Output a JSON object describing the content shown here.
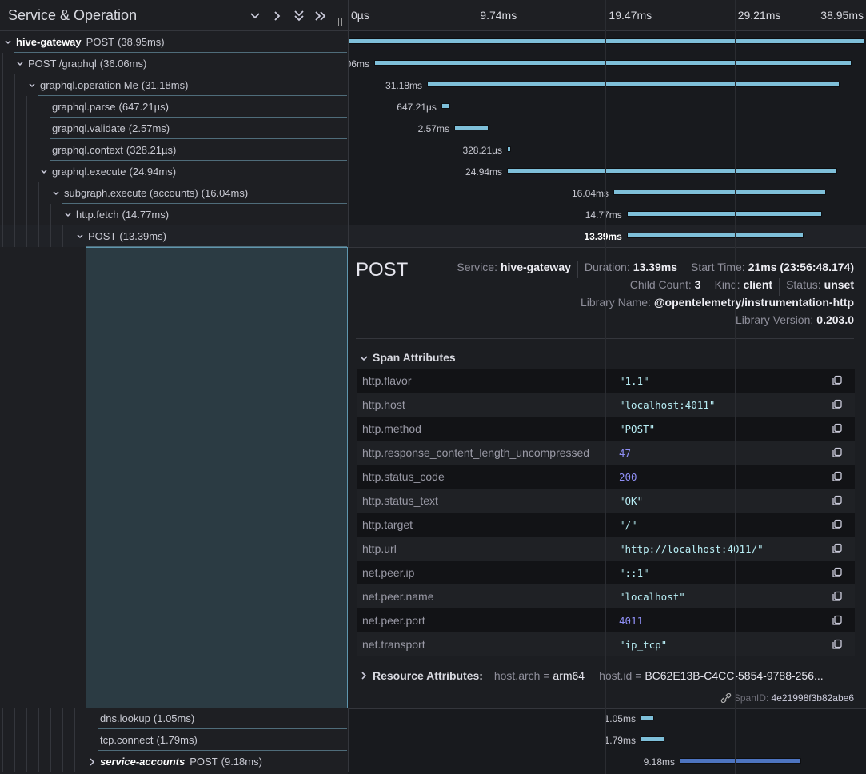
{
  "header": {
    "title": "Service & Operation"
  },
  "timeline": {
    "range": [
      0,
      38.95
    ],
    "ticks": [
      {
        "value": 0,
        "label": "0µs"
      },
      {
        "value": 9.74,
        "label": "9.74ms"
      },
      {
        "value": 19.47,
        "label": "19.47ms"
      },
      {
        "value": 29.21,
        "label": "29.21ms"
      },
      {
        "value": 38.95,
        "label": "38.95ms"
      }
    ]
  },
  "spans": [
    {
      "service": "hive-gateway",
      "name": "POST",
      "duration": 38.95,
      "duration_label": "38.95ms",
      "start": 0,
      "color": "#7ebfd9",
      "children": [
        {
          "name": "POST /graphql",
          "duration": 36.06,
          "duration_label": "36.06ms",
          "start": 1.93,
          "children": [
            {
              "name": "graphql.operation Me",
              "duration": 31.18,
              "duration_label": "31.18ms",
              "start": 5.92,
              "children": [
                {
                  "name": "graphql.parse",
                  "duration": 0.64721,
                  "duration_label": "647.21µs",
                  "start": 7.0
                },
                {
                  "name": "graphql.validate",
                  "duration": 2.57,
                  "duration_label": "2.57ms",
                  "start": 7.97
                },
                {
                  "name": "graphql.context",
                  "duration": 0.32821,
                  "duration_label": "328.21µs",
                  "start": 11.96
                },
                {
                  "name": "graphql.execute",
                  "duration": 24.94,
                  "duration_label": "24.94ms",
                  "start": 11.96,
                  "children": [
                    {
                      "name": "subgraph.execute (accounts)",
                      "duration": 16.04,
                      "duration_label": "16.04ms",
                      "start": 19.99,
                      "children": [
                        {
                          "name": "http.fetch",
                          "duration": 14.77,
                          "duration_label": "14.77ms",
                          "start": 21.0,
                          "children": [
                            {
                              "name": "POST",
                              "duration": 13.39,
                              "duration_label": "13.39ms",
                              "start": 21,
                              "selected": true,
                              "children": [
                                {
                                  "name": "dns.lookup",
                                  "duration": 1.05,
                                  "duration_label": "1.05ms",
                                  "start": 22.04
                                },
                                {
                                  "name": "tcp.connect",
                                  "duration": 1.79,
                                  "duration_label": "1.79ms",
                                  "start": 22.04
                                },
                                {
                                  "service": "service-accounts",
                                  "name": "POST",
                                  "duration": 9.18,
                                  "duration_label": "9.18ms",
                                  "start": 25.0,
                                  "color": "#4d74c0",
                                  "expanded": false
                                }
                              ]
                            }
                          ]
                        }
                      ]
                    }
                  ]
                }
              ]
            }
          ]
        }
      ]
    }
  ],
  "detail": {
    "title": "POST",
    "meta": [
      [
        {
          "label": "Service:",
          "value": "hive-gateway"
        },
        {
          "label": "Duration:",
          "value": "13.39ms"
        },
        {
          "label": "Start Time:",
          "value": "21ms (23:56:48.174)"
        }
      ],
      [
        {
          "label": "Child Count:",
          "value": 3
        },
        {
          "label": "Kind:",
          "value": "client"
        },
        {
          "label": "Status:",
          "value": "unset"
        }
      ],
      [
        {
          "label": "Library Name:",
          "value": "@opentelemetry/instrumentation-http"
        }
      ],
      [
        {
          "label": "Library Version:",
          "value": "0.203.0"
        }
      ]
    ],
    "span_attributes": {
      "title": "Span Attributes",
      "rows": [
        [
          "http.flavor",
          "\"1.1\""
        ],
        [
          "http.host",
          "\"localhost:4011\""
        ],
        [
          "http.method",
          "\"POST\""
        ],
        [
          "http.response_content_length_uncompressed",
          47
        ],
        [
          "http.status_code",
          200
        ],
        [
          "http.status_text",
          "\"OK\""
        ],
        [
          "http.target",
          "\"/\""
        ],
        [
          "http.url",
          "\"http://localhost:4011/\""
        ],
        [
          "net.peer.ip",
          "\"::1\""
        ],
        [
          "net.peer.name",
          "\"localhost\""
        ],
        [
          "net.peer.port",
          4011
        ],
        [
          "net.transport",
          "\"ip_tcp\""
        ]
      ]
    },
    "resource_attributes": {
      "title": "Resource Attributes:",
      "items": [
        [
          "host.arch",
          "arm64"
        ],
        [
          "host.id",
          "BC62E13B-C4CC-5854-9788-256..."
        ]
      ]
    },
    "span_id": {
      "label": "SpanID:",
      "value": "4e21998f3b82abe6"
    }
  }
}
